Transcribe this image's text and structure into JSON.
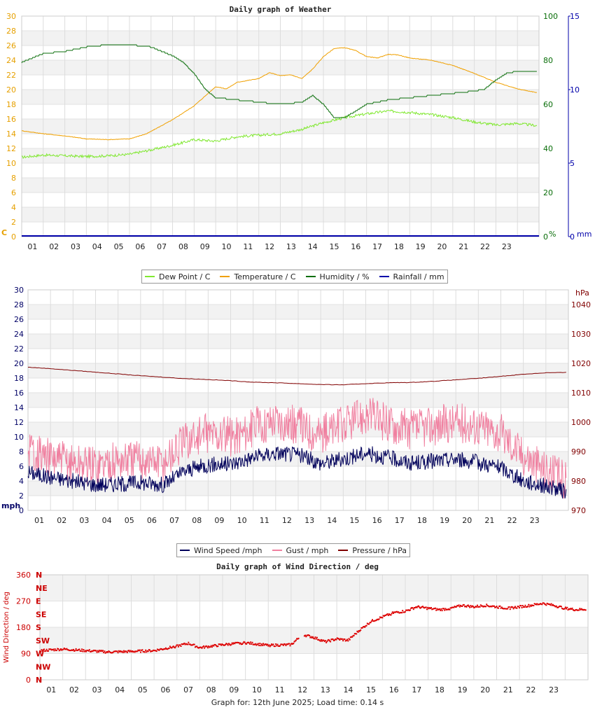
{
  "chart_data": [
    {
      "type": "line",
      "title": "Daily graph of Weather",
      "x_ticks": [
        "01",
        "02",
        "03",
        "04",
        "05",
        "06",
        "07",
        "08",
        "09",
        "10",
        "11",
        "12",
        "13",
        "14",
        "15",
        "16",
        "17",
        "18",
        "19",
        "20",
        "21",
        "22",
        "23"
      ],
      "x_range": [
        0,
        24
      ],
      "y_left": {
        "range": [
          0,
          30
        ],
        "ticks": [
          0,
          2,
          4,
          6,
          8,
          10,
          12,
          14,
          16,
          18,
          20,
          22,
          24,
          26,
          28,
          30
        ],
        "unit": "C",
        "color": "#e6a000"
      },
      "y_right1": {
        "range": [
          0,
          100
        ],
        "ticks": [
          0,
          20,
          40,
          60,
          80,
          100
        ],
        "unit": "%",
        "color": "#0a6e0a"
      },
      "y_right2": {
        "range": [
          0,
          15
        ],
        "ticks": [
          0,
          5,
          10,
          15
        ],
        "unit": "mm",
        "color": "#0000aa"
      },
      "series": [
        {
          "name": "Dew Point / C",
          "color": "#80e830",
          "axis": "left",
          "points": [
            [
              0,
              10.8
            ],
            [
              1,
              11.1
            ],
            [
              2,
              11.0
            ],
            [
              3,
              10.9
            ],
            [
              4,
              11.0
            ],
            [
              5,
              11.2
            ],
            [
              6,
              11.8
            ],
            [
              6.8,
              12.3
            ],
            [
              7.5,
              12.8
            ],
            [
              8,
              13.2
            ],
            [
              9,
              13.0
            ],
            [
              10,
              13.6
            ],
            [
              11,
              13.8
            ],
            [
              12,
              14.0
            ],
            [
              13,
              14.6
            ],
            [
              14,
              15.5
            ],
            [
              15,
              16.2
            ],
            [
              16,
              16.7
            ],
            [
              17,
              17.1
            ],
            [
              18,
              16.9
            ],
            [
              19,
              16.6
            ],
            [
              20,
              16.2
            ],
            [
              21,
              15.6
            ],
            [
              22,
              15.2
            ],
            [
              23,
              15.4
            ],
            [
              23.9,
              15.1
            ]
          ]
        },
        {
          "name": "Temperature / C",
          "color": "#f0a000",
          "axis": "left",
          "points": [
            [
              0,
              14.4
            ],
            [
              1,
              14.0
            ],
            [
              2,
              13.7
            ],
            [
              3,
              13.3
            ],
            [
              4,
              13.2
            ],
            [
              5,
              13.3
            ],
            [
              5.8,
              14.0
            ],
            [
              6.3,
              14.8
            ],
            [
              7,
              15.9
            ],
            [
              8,
              17.8
            ],
            [
              9,
              20.4
            ],
            [
              9.5,
              20.1
            ],
            [
              10,
              21.0
            ],
            [
              11,
              21.5
            ],
            [
              11.5,
              22.3
            ],
            [
              12,
              21.9
            ],
            [
              12.5,
              22.0
            ],
            [
              13,
              21.5
            ],
            [
              13.5,
              22.8
            ],
            [
              14,
              24.5
            ],
            [
              14.5,
              25.6
            ],
            [
              15,
              25.7
            ],
            [
              15.5,
              25.3
            ],
            [
              16,
              24.5
            ],
            [
              16.5,
              24.3
            ],
            [
              17,
              24.8
            ],
            [
              17.5,
              24.7
            ],
            [
              18,
              24.3
            ],
            [
              19,
              24.0
            ],
            [
              20,
              23.3
            ],
            [
              21,
              22.2
            ],
            [
              22,
              21.0
            ],
            [
              23,
              20.1
            ],
            [
              23.9,
              19.6
            ]
          ]
        },
        {
          "name": "Humidity / %",
          "color": "#0a6e0a",
          "axis": "right1",
          "points": [
            [
              0,
              79
            ],
            [
              0.5,
              81
            ],
            [
              1,
              83
            ],
            [
              2,
              84
            ],
            [
              3,
              86
            ],
            [
              4,
              87
            ],
            [
              5,
              87
            ],
            [
              6,
              86
            ],
            [
              6.5,
              84
            ],
            [
              7,
              82
            ],
            [
              7.5,
              79
            ],
            [
              8,
              74
            ],
            [
              8.5,
              67
            ],
            [
              9,
              63
            ],
            [
              10,
              62
            ],
            [
              11,
              61
            ],
            [
              12,
              60
            ],
            [
              13,
              61
            ],
            [
              13.5,
              64
            ],
            [
              14,
              60
            ],
            [
              14.5,
              54
            ],
            [
              15,
              54
            ],
            [
              15.5,
              57
            ],
            [
              16,
              60
            ],
            [
              17,
              62
            ],
            [
              18,
              63
            ],
            [
              19,
              64
            ],
            [
              20,
              65
            ],
            [
              21,
              66
            ],
            [
              21.5,
              67
            ],
            [
              22,
              71
            ],
            [
              22.5,
              74
            ],
            [
              23,
              75
            ],
            [
              23.9,
              75
            ]
          ]
        },
        {
          "name": "Rainfall / mm",
          "color": "#0000aa",
          "axis": "right2",
          "points": [
            [
              0,
              0
            ],
            [
              24,
              0
            ]
          ]
        }
      ]
    },
    {
      "type": "line",
      "title": "",
      "x_ticks": [
        "01",
        "02",
        "03",
        "04",
        "05",
        "06",
        "07",
        "08",
        "09",
        "10",
        "11",
        "12",
        "13",
        "14",
        "15",
        "16",
        "17",
        "18",
        "19",
        "20",
        "21",
        "22",
        "23"
      ],
      "x_range": [
        0,
        24
      ],
      "y_left": {
        "range": [
          0,
          30
        ],
        "ticks": [
          0,
          2,
          4,
          6,
          8,
          10,
          12,
          14,
          16,
          18,
          20,
          22,
          24,
          26,
          28,
          30
        ],
        "unit": "mph",
        "color": "#000066"
      },
      "y_right": {
        "range": [
          970,
          1045
        ],
        "ticks": [
          970,
          980,
          990,
          1000,
          1010,
          1020,
          1030,
          1040
        ],
        "unit": "hPa",
        "color": "#800000"
      },
      "series": [
        {
          "name": "Wind Speed /mph",
          "color": "#00005a",
          "axis": "left",
          "points": [
            [
              0,
              5.2
            ],
            [
              1,
              4.5
            ],
            [
              2,
              4.0
            ],
            [
              3,
              3.5
            ],
            [
              4,
              3.6
            ],
            [
              5,
              3.8
            ],
            [
              6,
              3.5
            ],
            [
              7,
              5.4
            ],
            [
              8,
              6.2
            ],
            [
              9,
              6.3
            ],
            [
              10,
              7.2
            ],
            [
              11,
              7.8
            ],
            [
              12,
              7.6
            ],
            [
              13,
              6.4
            ],
            [
              14,
              7.0
            ],
            [
              15,
              7.8
            ],
            [
              16,
              7.2
            ],
            [
              17,
              6.4
            ],
            [
              18,
              6.7
            ],
            [
              19,
              7.0
            ],
            [
              20,
              6.5
            ],
            [
              21,
              5.8
            ],
            [
              22,
              4.0
            ],
            [
              23,
              3.3
            ],
            [
              23.9,
              2.5
            ]
          ]
        },
        {
          "name": "Gust / mph",
          "color": "#f080a0",
          "axis": "left",
          "points": [
            [
              0,
              8.5
            ],
            [
              1,
              7.0
            ],
            [
              2,
              6.5
            ],
            [
              3,
              6.2
            ],
            [
              4,
              6.8
            ],
            [
              5,
              7.0
            ],
            [
              6,
              6.5
            ],
            [
              7,
              9.5
            ],
            [
              8,
              10.5
            ],
            [
              9,
              10.0
            ],
            [
              10,
              11.2
            ],
            [
              11,
              12.5
            ],
            [
              12,
              11.5
            ],
            [
              13,
              10.5
            ],
            [
              14,
              11.5
            ],
            [
              15,
              13.0
            ],
            [
              16,
              12.0
            ],
            [
              17,
              11.0
            ],
            [
              18,
              11.5
            ],
            [
              19,
              12.0
            ],
            [
              20,
              11.5
            ],
            [
              21,
              10.5
            ],
            [
              22,
              7.5
            ],
            [
              23,
              5.5
            ],
            [
              23.9,
              4.0
            ]
          ]
        },
        {
          "name": "Pressure / hPa",
          "color": "#800000",
          "axis": "right",
          "points": [
            [
              0,
              1018.7
            ],
            [
              1,
              1018.2
            ],
            [
              2,
              1017.6
            ],
            [
              3,
              1017.0
            ],
            [
              4,
              1016.4
            ],
            [
              5,
              1015.8
            ],
            [
              6,
              1015.3
            ],
            [
              7,
              1014.8
            ],
            [
              8,
              1014.5
            ],
            [
              9,
              1014.1
            ],
            [
              10,
              1013.6
            ],
            [
              11,
              1013.4
            ],
            [
              12,
              1013.1
            ],
            [
              13,
              1012.8
            ],
            [
              14,
              1012.7
            ],
            [
              15,
              1013.1
            ],
            [
              16,
              1013.4
            ],
            [
              17,
              1013.5
            ],
            [
              18,
              1013.9
            ],
            [
              19,
              1014.4
            ],
            [
              20,
              1014.9
            ],
            [
              21,
              1015.6
            ],
            [
              22,
              1016.3
            ],
            [
              23,
              1016.8
            ],
            [
              23.9,
              1016.9
            ]
          ]
        }
      ]
    },
    {
      "type": "scatter",
      "title": "Daily graph of Wind Direction / deg",
      "x_ticks": [
        "01",
        "02",
        "03",
        "04",
        "05",
        "06",
        "07",
        "08",
        "09",
        "10",
        "11",
        "12",
        "13",
        "14",
        "15",
        "16",
        "17",
        "18",
        "19",
        "20",
        "21",
        "22",
        "23"
      ],
      "x_range": [
        0,
        24
      ],
      "y_left": {
        "range": [
          0,
          360
        ],
        "ticks": [
          0,
          90,
          180,
          270,
          360
        ],
        "label": "Wind Direction / deg",
        "color": "#cc0000"
      },
      "compass_labels": [
        "N",
        "NE",
        "E",
        "SE",
        "S",
        "SW",
        "W",
        "NW",
        "N"
      ],
      "series": [
        {
          "name": "Wind Direction",
          "color": "#dd0000",
          "points": [
            [
              0,
              100
            ],
            [
              1,
              105
            ],
            [
              2,
              100
            ],
            [
              3,
              95
            ],
            [
              4,
              97
            ],
            [
              5,
              100
            ],
            [
              6,
              115
            ],
            [
              6.5,
              125
            ],
            [
              7,
              110
            ],
            [
              8,
              120
            ],
            [
              9,
              127
            ],
            [
              10,
              118
            ],
            [
              11,
              120
            ],
            [
              11.5,
              155
            ],
            [
              12,
              145
            ],
            [
              12.5,
              130
            ],
            [
              13,
              140
            ],
            [
              13.5,
              135
            ],
            [
              14,
              170
            ],
            [
              14.5,
              200
            ],
            [
              15,
              215
            ],
            [
              15.5,
              230
            ],
            [
              16,
              235
            ],
            [
              16.5,
              250
            ],
            [
              17,
              245
            ],
            [
              17.5,
              240
            ],
            [
              18,
              245
            ],
            [
              18.5,
              255
            ],
            [
              19,
              250
            ],
            [
              19.5,
              255
            ],
            [
              20,
              250
            ],
            [
              20.5,
              245
            ],
            [
              21,
              250
            ],
            [
              21.5,
              255
            ],
            [
              22,
              262
            ],
            [
              22.5,
              255
            ],
            [
              23,
              245
            ],
            [
              23.5,
              240
            ],
            [
              23.9,
              242
            ]
          ]
        }
      ]
    }
  ],
  "legends": [
    {
      "items": [
        {
          "label": "Dew Point / C",
          "color": "#80e830"
        },
        {
          "label": "Temperature / C",
          "color": "#f0a000"
        },
        {
          "label": "Humidity / %",
          "color": "#0a6e0a"
        },
        {
          "label": "Rainfall / mm",
          "color": "#0000aa"
        }
      ]
    },
    {
      "items": [
        {
          "label": "Wind Speed /mph",
          "color": "#00005a"
        },
        {
          "label": "Gust / mph",
          "color": "#f080a0"
        },
        {
          "label": "Pressure / hPa",
          "color": "#800000"
        }
      ]
    }
  ],
  "footer": {
    "text": "Graph for: 12th June 2025; Load time: 0.14 s"
  }
}
